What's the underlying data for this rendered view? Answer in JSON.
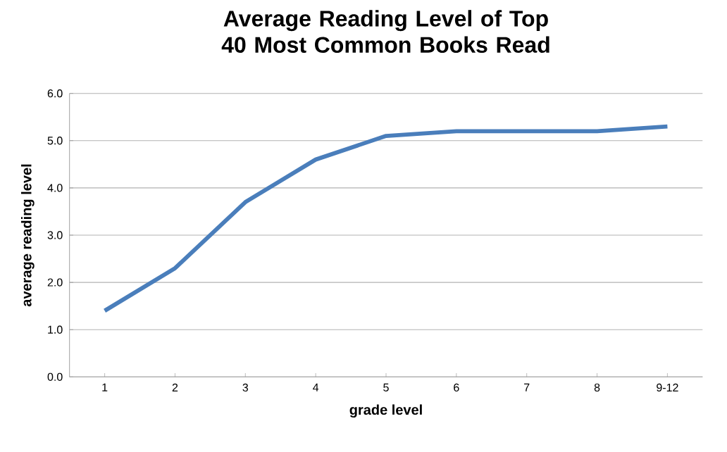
{
  "chart_data": {
    "type": "line",
    "title": "Average Reading Level of Top 40 Most Common Books Read",
    "xlabel": "grade level",
    "ylabel": "average reading level",
    "categories": [
      "1",
      "2",
      "3",
      "4",
      "5",
      "6",
      "7",
      "8",
      "9-12"
    ],
    "series": [
      {
        "color": "#4a7ebb",
        "values": [
          1.4,
          2.3,
          3.7,
          4.6,
          5.1,
          5.2,
          5.2,
          5.2,
          5.3
        ]
      }
    ],
    "ylim": [
      0,
      6
    ],
    "yticks": [
      {
        "value": 0,
        "label": "0.0"
      },
      {
        "value": 1,
        "label": "1.0"
      },
      {
        "value": 2,
        "label": "2.0"
      },
      {
        "value": 3,
        "label": "3.0"
      },
      {
        "value": 4,
        "label": "4.0"
      },
      {
        "value": 5,
        "label": "5.0"
      },
      {
        "value": 6,
        "label": "6.0"
      }
    ],
    "grid": "y",
    "marker": "none",
    "line_style": "solid"
  }
}
